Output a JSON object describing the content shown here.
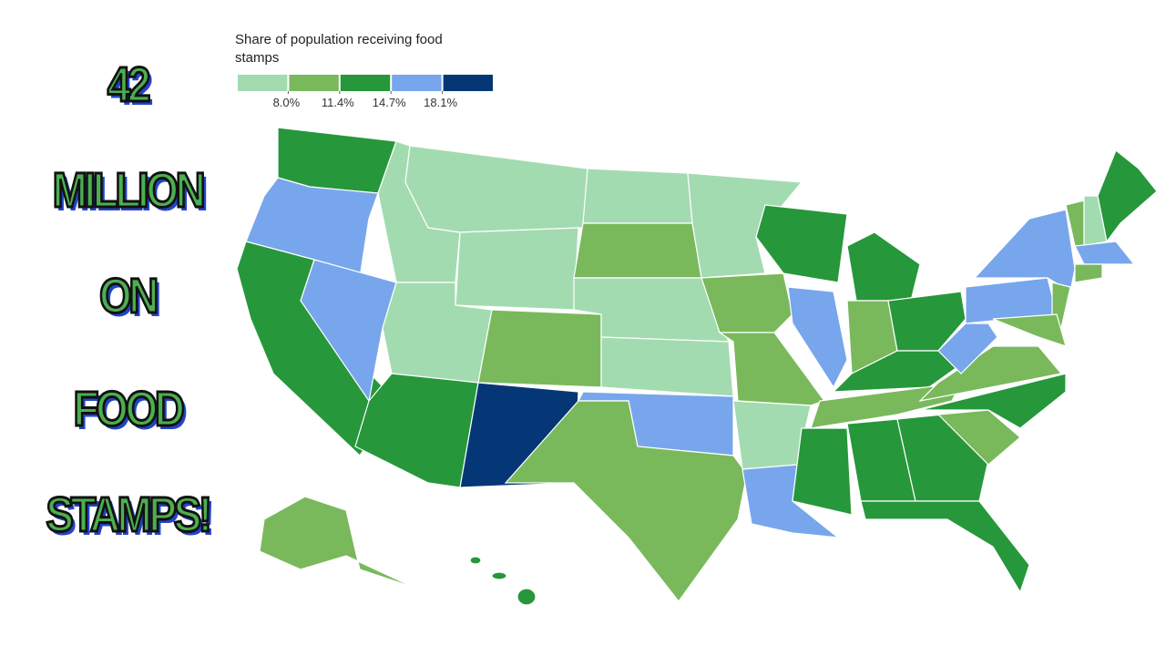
{
  "headline": [
    "42",
    "MILLION",
    "ON",
    "FOOD",
    "STAMPS!"
  ],
  "map": {
    "legend": {
      "title": "Share of population receiving food stamps",
      "colors": [
        "#a3dbb0",
        "#79b95c",
        "#26973a",
        "#78a6ec",
        "#053777"
      ],
      "ticks": [
        {
          "value": 8.0,
          "label": "8.0%"
        },
        {
          "value": 11.4,
          "label": "11.4%"
        },
        {
          "value": 14.7,
          "label": "14.7%"
        },
        {
          "value": 18.1,
          "label": "18.1%"
        }
      ]
    }
  }
}
